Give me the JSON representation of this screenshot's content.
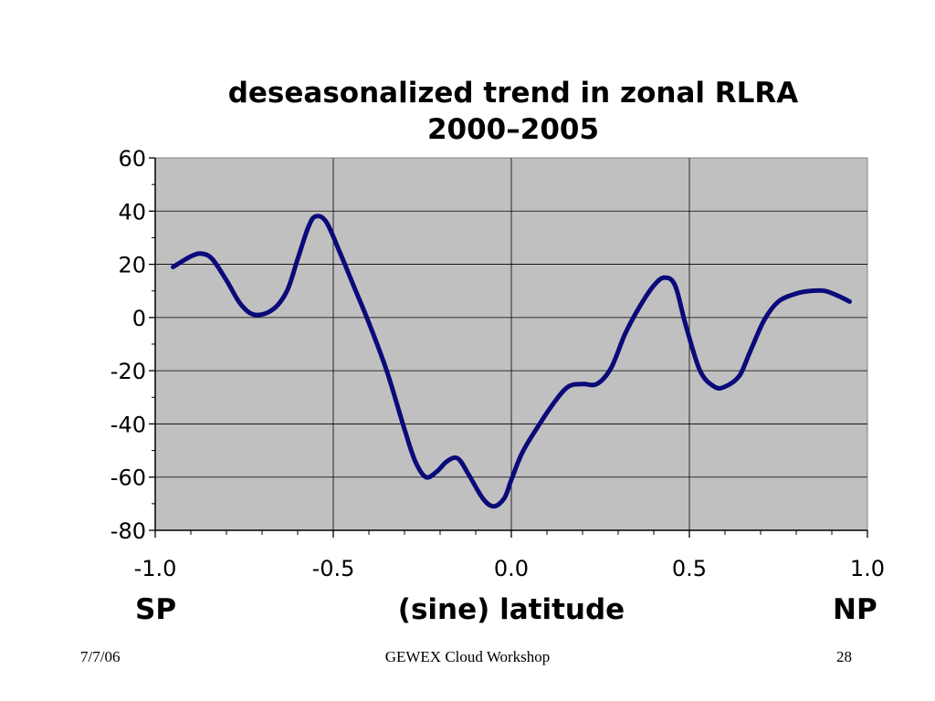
{
  "chart_data": {
    "type": "line",
    "title_lines": [
      "deseasonalized trend in zonal RLRA",
      "2000–2005"
    ],
    "xlabel": "(sine) latitude",
    "x_end_labels": {
      "left": "SP",
      "right": "NP"
    },
    "xlim": [
      -1.0,
      1.0
    ],
    "ylim": [
      -80,
      60
    ],
    "x_ticks": [
      "-1.0",
      "-0.5",
      "0.0",
      "0.5",
      "1.0"
    ],
    "x_tick_values": [
      -1.0,
      -0.5,
      0.0,
      0.5,
      1.0
    ],
    "y_ticks": [
      "60",
      "40",
      "20",
      "0",
      "-20",
      "-40",
      "-60",
      "-80"
    ],
    "y_tick_values": [
      60,
      40,
      20,
      0,
      -20,
      -40,
      -60,
      -80
    ],
    "grid": true,
    "plot_background": "#c0c0c0",
    "line_color": "#0a0a7a",
    "series": [
      {
        "x": [
          -0.95,
          -0.9,
          -0.87,
          -0.84,
          -0.8,
          -0.76,
          -0.72,
          -0.67,
          -0.63,
          -0.6,
          -0.57,
          -0.55,
          -0.52,
          -0.48,
          -0.44,
          -0.4,
          -0.35,
          -0.3,
          -0.27,
          -0.24,
          -0.21,
          -0.18,
          -0.15,
          -0.12,
          -0.08,
          -0.05,
          -0.02,
          0.0,
          0.03,
          0.07,
          0.12,
          0.16,
          0.2,
          0.24,
          0.28,
          0.32,
          0.36,
          0.4,
          0.43,
          0.46,
          0.49,
          0.53,
          0.57,
          0.6,
          0.64,
          0.67,
          0.71,
          0.75,
          0.8,
          0.84,
          0.88,
          0.92,
          0.95
        ],
        "y": [
          19,
          23,
          24,
          22,
          14,
          5,
          1,
          3,
          10,
          22,
          34,
          38,
          36,
          24,
          11,
          -2,
          -20,
          -42,
          -54,
          -60,
          -58,
          -54,
          -53,
          -59,
          -68,
          -71,
          -68,
          -61,
          -51,
          -42,
          -32,
          -26,
          -25,
          -25,
          -19,
          -6,
          4,
          12,
          15,
          12,
          -3,
          -20,
          -26,
          -26,
          -22,
          -13,
          -1,
          6,
          9,
          10,
          10,
          8,
          6
        ]
      }
    ]
  },
  "footer": {
    "date": "7/7/06",
    "center": "GEWEX Cloud Workshop",
    "page": "28"
  }
}
